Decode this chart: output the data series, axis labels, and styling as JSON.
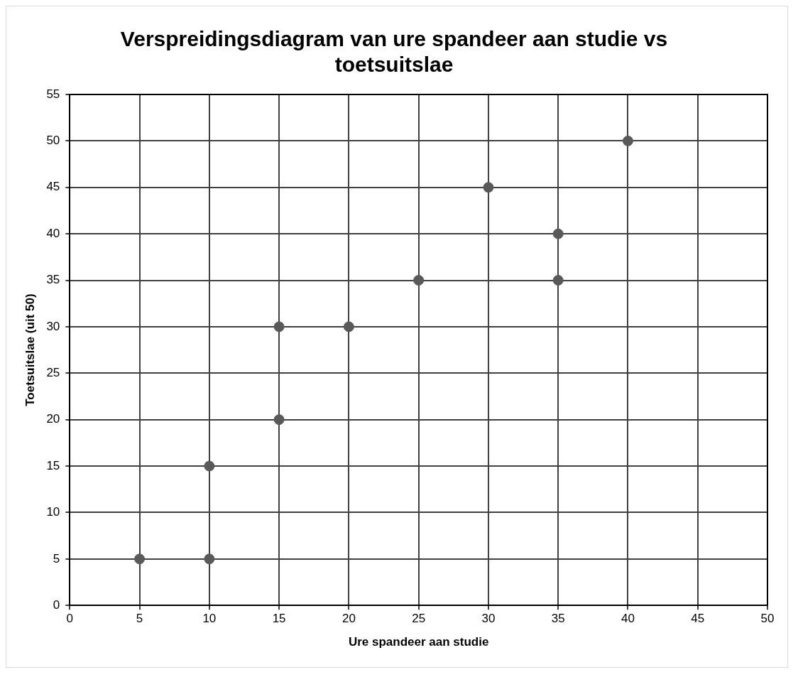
{
  "chart_data": {
    "type": "scatter",
    "title": "Verspreidingsdiagram van ure spandeer aan studie vs toetsuitslae",
    "xlabel": "Ure spandeer aan studie",
    "ylabel": "Toetsuitslae (uit 50)",
    "x": [
      5,
      10,
      10,
      15,
      15,
      20,
      25,
      30,
      35,
      35,
      40
    ],
    "series": [
      {
        "color": "#595959",
        "values": [
          5,
          5,
          15,
          20,
          30,
          30,
          35,
          45,
          40,
          35,
          50
        ]
      }
    ],
    "xlim": [
      0,
      50
    ],
    "xticks": [
      0,
      5,
      10,
      15,
      20,
      25,
      30,
      35,
      40,
      45,
      50
    ],
    "ylim": [
      0,
      55
    ],
    "yticks": [
      0,
      5,
      10,
      15,
      20,
      25,
      30,
      35,
      40,
      45,
      50,
      55
    ],
    "grid": true,
    "legend": false,
    "marker": "circle"
  }
}
